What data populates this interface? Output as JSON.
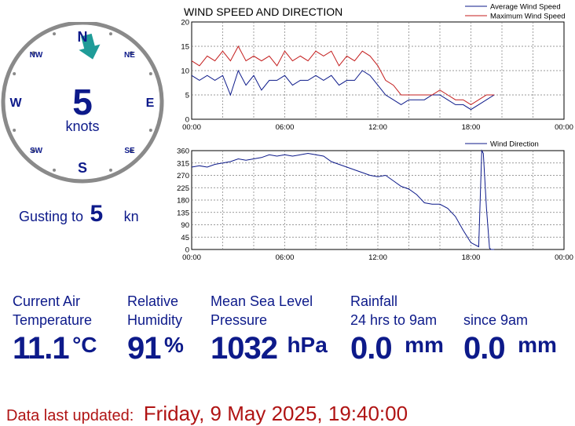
{
  "compass": {
    "speed": "5",
    "unit": "knots",
    "directions": {
      "n": "N",
      "ne": "NE",
      "e": "E",
      "se": "SE",
      "s": "S",
      "sw": "SW",
      "w": "W",
      "nw": "NW"
    },
    "arrow_bearing_deg": 15,
    "colors": {
      "ring": "#8a8a8a",
      "arrow": "#1f9c98",
      "text": "#0d1a8a"
    }
  },
  "gust": {
    "label": "Gusting to",
    "value": "5",
    "unit": "kn"
  },
  "readings": {
    "temperature": {
      "label1": "Current Air",
      "label2": "Temperature",
      "value": "11.1",
      "unit": "°C"
    },
    "humidity": {
      "label1": "Relative",
      "label2": "Humidity",
      "value": "91",
      "unit": "%"
    },
    "pressure": {
      "label1": "Mean Sea Level",
      "label2": "Pressure",
      "value": "1032",
      "unit": "hPa"
    },
    "rainfall": {
      "label1": "Rainfall",
      "label2": "24 hrs to 9am",
      "value": "0.0",
      "unit": "mm"
    },
    "rainfall_since": {
      "label2": "since 9am",
      "value": "0.0",
      "unit": "mm"
    }
  },
  "footer": {
    "label": "Data last updated:",
    "value": "Friday, 9 May 2025, 19:40:00"
  },
  "chart_data": [
    {
      "type": "line",
      "title": "WIND SPEED AND DIRECTION",
      "x_tick_labels": [
        "00:00",
        "06:00",
        "12:00",
        "18:00",
        "00:00"
      ],
      "x_range_hours": [
        0,
        24
      ],
      "ylim": [
        0,
        20
      ],
      "y_ticks": [
        0,
        5,
        10,
        15,
        20
      ],
      "grid": true,
      "legend_position": "top-right",
      "x": [
        0,
        0.5,
        1,
        1.5,
        2,
        2.5,
        3,
        3.5,
        4,
        4.5,
        5,
        5.5,
        6,
        6.5,
        7,
        7.5,
        8,
        8.5,
        9,
        9.5,
        10,
        10.5,
        11,
        11.5,
        12,
        12.5,
        13,
        13.5,
        14,
        14.5,
        15,
        15.5,
        16,
        16.5,
        17,
        17.5,
        18,
        18.5,
        19,
        19.5
      ],
      "series": [
        {
          "name": "Average Wind Speed",
          "color": "#0d1a8a",
          "values": [
            9,
            8,
            9,
            8,
            9,
            5,
            10,
            7,
            9,
            6,
            8,
            8,
            9,
            7,
            8,
            8,
            9,
            8,
            9,
            7,
            8,
            8,
            10,
            9,
            7,
            5,
            4,
            3,
            4,
            4,
            4,
            5,
            5,
            4,
            3,
            3,
            2,
            3,
            4,
            5
          ]
        },
        {
          "name": "Maximum Wind Speed",
          "color": "#c41e1e",
          "values": [
            12,
            11,
            13,
            12,
            14,
            12,
            15,
            12,
            13,
            12,
            13,
            11,
            14,
            12,
            13,
            12,
            14,
            13,
            14,
            11,
            13,
            12,
            14,
            13,
            11,
            8,
            7,
            5,
            5,
            5,
            5,
            5,
            6,
            5,
            4,
            4,
            3,
            4,
            5,
            5
          ]
        }
      ]
    },
    {
      "type": "line",
      "x_tick_labels": [
        "00:00",
        "06:00",
        "12:00",
        "18:00",
        "00:00"
      ],
      "x_range_hours": [
        0,
        24
      ],
      "ylim": [
        0,
        360
      ],
      "y_ticks": [
        0,
        45,
        90,
        135,
        180,
        225,
        270,
        315,
        360
      ],
      "grid": true,
      "legend_position": "top-right",
      "x": [
        0,
        0.5,
        1,
        1.5,
        2,
        2.5,
        3,
        3.5,
        4,
        4.5,
        5,
        5.5,
        6,
        6.5,
        7,
        7.5,
        8,
        8.5,
        9,
        9.5,
        10,
        10.5,
        11,
        11.5,
        12,
        12.5,
        13,
        13.5,
        14,
        14.5,
        15,
        15.5,
        16,
        16.5,
        17,
        17.5,
        18,
        18.5,
        18.7,
        18.8,
        19,
        19.2,
        19.3,
        19.5
      ],
      "series": [
        {
          "name": "Wind Direction",
          "color": "#0d1a8a",
          "values": [
            300,
            305,
            300,
            310,
            315,
            320,
            330,
            325,
            330,
            335,
            345,
            340,
            345,
            340,
            345,
            350,
            345,
            340,
            320,
            310,
            300,
            290,
            280,
            270,
            265,
            270,
            250,
            230,
            220,
            200,
            170,
            165,
            165,
            150,
            120,
            70,
            25,
            10,
            360,
            350,
            150,
            5,
            0,
            0
          ]
        }
      ]
    }
  ]
}
